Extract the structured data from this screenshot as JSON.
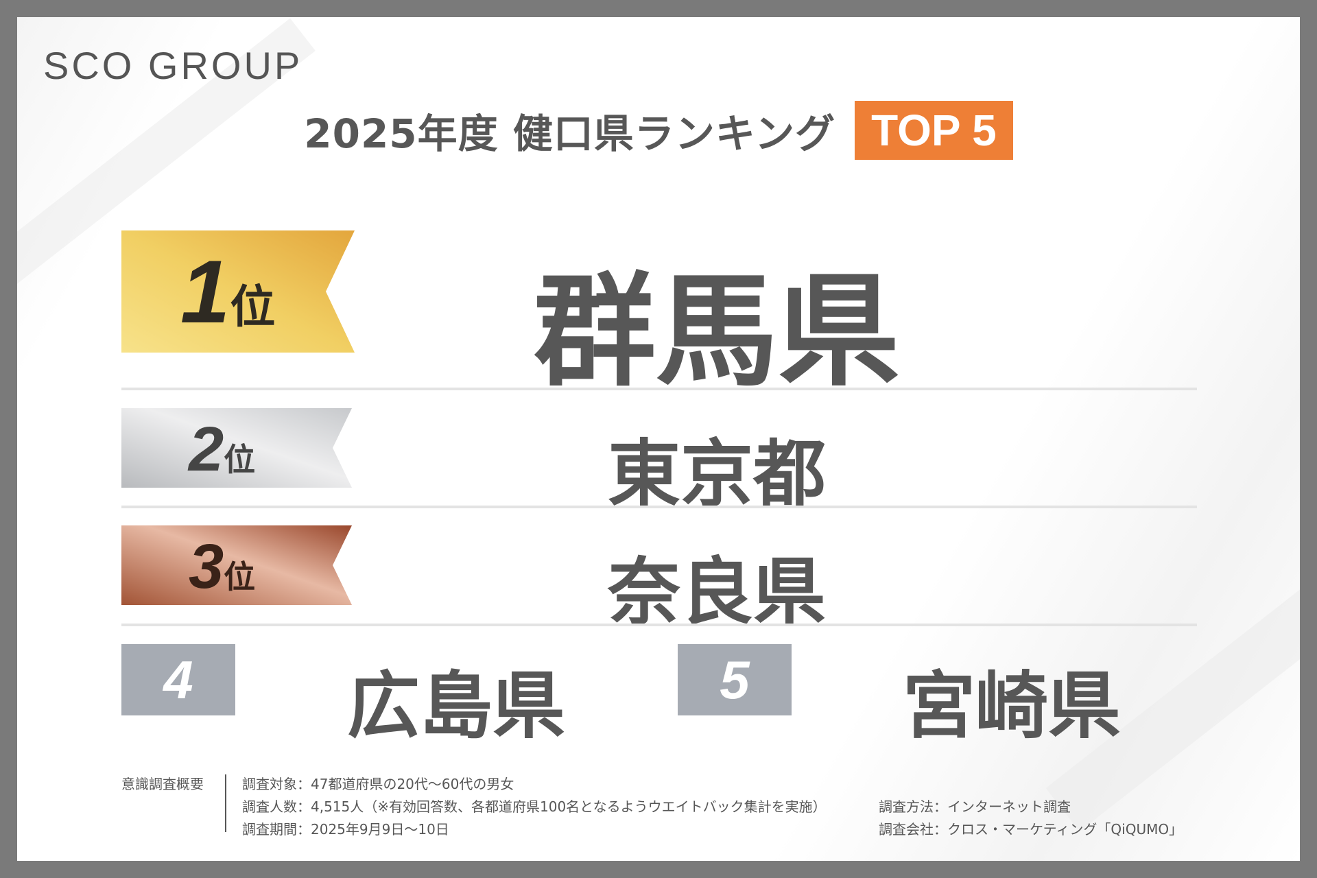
{
  "logo": "SCO GROUP",
  "title": "2025年度 健口県ランキング",
  "badge": "TOP 5",
  "rankings": [
    {
      "rank": "1",
      "suffix": "位",
      "prefecture": "群馬県"
    },
    {
      "rank": "2",
      "suffix": "位",
      "prefecture": "東京都"
    },
    {
      "rank": "3",
      "suffix": "位",
      "prefecture": "奈良県"
    },
    {
      "rank": "4",
      "prefecture": "広島県"
    },
    {
      "rank": "5",
      "prefecture": "宮崎県"
    }
  ],
  "colors": {
    "badge": "#ee7f36",
    "gold": "#e9b84c",
    "silver": "#c2c4c7",
    "bronze": "#b06a50",
    "rank_box": "#a6abb3",
    "text": "#575757"
  },
  "footer": {
    "label": "意識調査概要",
    "target": "調査対象：47都道府県の20代〜60代の男女",
    "count": "調査人数：4,515人（※有効回答数、各都道府県100名となるようウエイトバック集計を実施）",
    "period": "調査期間：2025年9月9日〜10日",
    "method": "調査方法：インターネット調査",
    "company": "調査会社：クロス・マーケティング「QiQUMO」"
  }
}
